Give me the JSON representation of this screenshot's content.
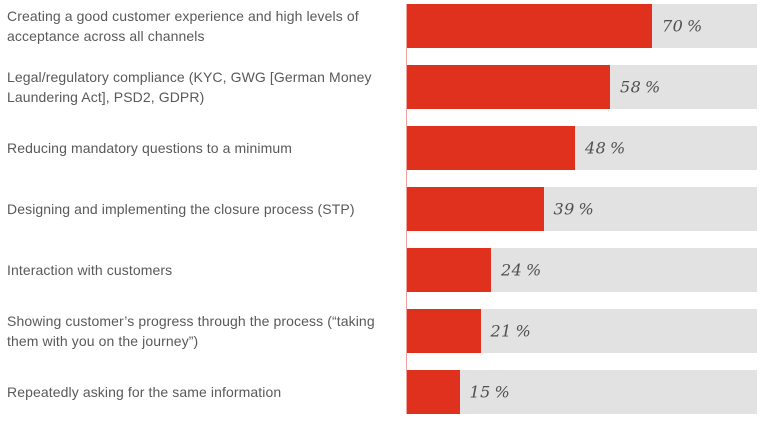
{
  "chart_data": {
    "type": "bar",
    "orientation": "horizontal",
    "title": "",
    "xlabel": "",
    "ylabel": "",
    "xlim": [
      0,
      100
    ],
    "grid": false,
    "legend": false,
    "colors": {
      "bar": "#e0301e",
      "track": "#e2e2e2",
      "axis_line": "#efa49b",
      "category_label": "#58595b",
      "value_label": "#4f4f4f"
    },
    "categories": [
      "Creating a good customer experience and high levels of acceptance across all channels",
      "Legal/regulatory compliance (KYC, GWG [German Money Laundering Act], PSD2, GDPR)",
      "Reducing mandatory questions to a minimum",
      "Designing and implementing the closure process (STP)",
      "Interaction with customers",
      "Showing customer’s progress through the process (“taking them with you on the journey”)",
      "Repeatedly asking for the same information"
    ],
    "values": [
      70,
      58,
      48,
      39,
      24,
      21,
      15
    ],
    "value_labels": [
      "70 %",
      "58 %",
      "48 %",
      "39 %",
      "24 %",
      "21 %",
      "15 %"
    ]
  }
}
